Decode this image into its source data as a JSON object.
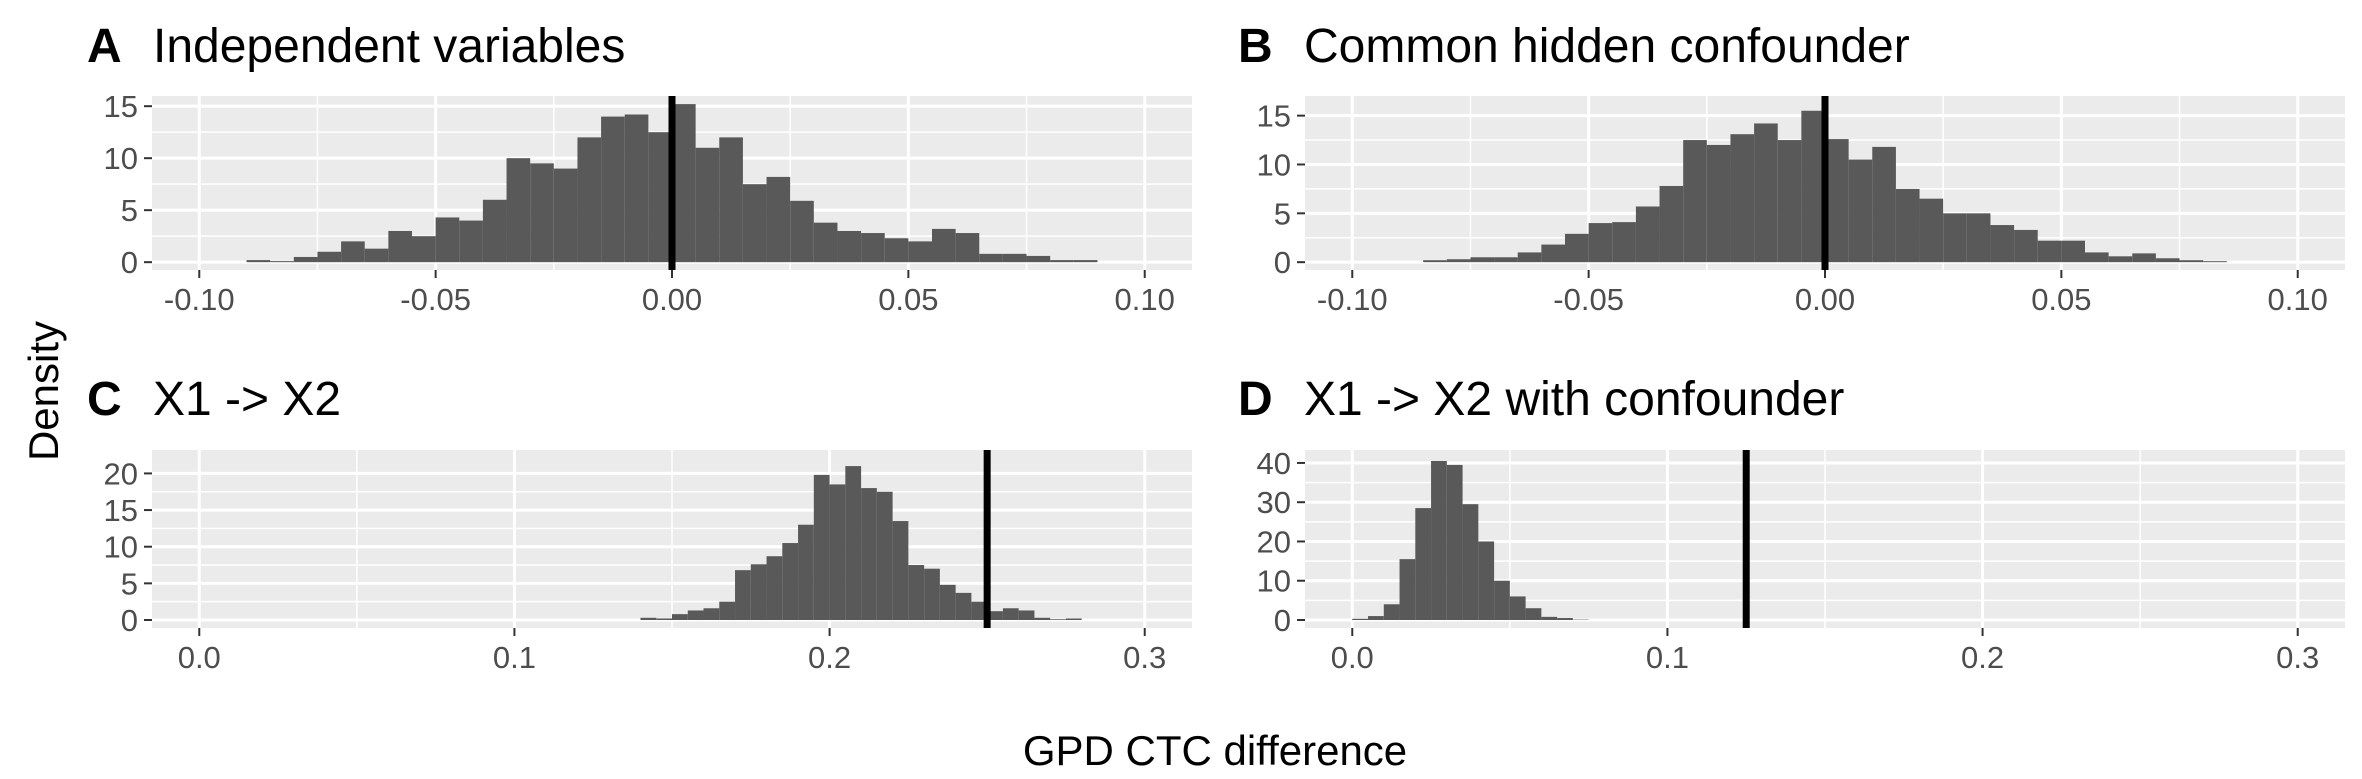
{
  "figure": {
    "ylabel": "Density",
    "xlabel": "GPD CTC difference"
  },
  "chart_data": [
    {
      "type": "bar",
      "panel": "A",
      "title": "Independent variables",
      "xlim": [
        -0.1,
        0.1
      ],
      "ylim": [
        0,
        15.5
      ],
      "xticks": [
        -0.1,
        -0.05,
        0.0,
        0.05,
        0.1
      ],
      "xtick_labels": [
        "-0.10",
        "-0.05",
        "0.00",
        "0.05",
        "0.10"
      ],
      "yticks": [
        0,
        5,
        10,
        15
      ],
      "ytick_labels": [
        "0",
        "5",
        "10",
        "15"
      ],
      "vline": 0.0,
      "bin_width": 0.005,
      "bin_centers": [
        -0.0875,
        -0.0825,
        -0.0775,
        -0.0725,
        -0.0675,
        -0.0625,
        -0.0575,
        -0.0525,
        -0.0475,
        -0.0425,
        -0.0375,
        -0.0325,
        -0.0275,
        -0.0225,
        -0.0175,
        -0.0125,
        -0.0075,
        -0.0025,
        0.0025,
        0.0075,
        0.0125,
        0.0175,
        0.0225,
        0.0275,
        0.0325,
        0.0375,
        0.0425,
        0.0475,
        0.0525,
        0.0575,
        0.0625,
        0.0675,
        0.0725,
        0.0775,
        0.0825,
        0.0875
      ],
      "densities": [
        0.2,
        0.1,
        0.5,
        1.0,
        2.0,
        1.3,
        3.0,
        2.5,
        4.3,
        4.0,
        6.0,
        10.0,
        9.5,
        9.0,
        12.0,
        14.0,
        14.2,
        12.5,
        15.2,
        11.0,
        12.0,
        7.5,
        8.2,
        5.9,
        3.8,
        3.0,
        2.8,
        2.3,
        2.0,
        3.2,
        2.8,
        0.8,
        0.8,
        0.6,
        0.2,
        0.2
      ]
    },
    {
      "type": "bar",
      "panel": "B",
      "title": "Common hidden confounder",
      "xlim": [
        -0.1,
        0.1
      ],
      "ylim": [
        0,
        16.5
      ],
      "xticks": [
        -0.1,
        -0.05,
        0.0,
        0.05,
        0.1
      ],
      "xtick_labels": [
        "-0.10",
        "-0.05",
        "0.00",
        "0.05",
        "0.10"
      ],
      "yticks": [
        0,
        5,
        10,
        15
      ],
      "ytick_labels": [
        "0",
        "5",
        "10",
        "15"
      ],
      "vline": 0.0,
      "bin_width": 0.005,
      "bin_centers": [
        -0.0825,
        -0.0775,
        -0.0725,
        -0.0675,
        -0.0625,
        -0.0575,
        -0.0525,
        -0.0475,
        -0.0425,
        -0.0375,
        -0.0325,
        -0.0275,
        -0.0225,
        -0.0175,
        -0.0125,
        -0.0075,
        -0.0025,
        0.0025,
        0.0075,
        0.0125,
        0.0175,
        0.0225,
        0.0275,
        0.0325,
        0.0375,
        0.0425,
        0.0475,
        0.0525,
        0.0575,
        0.0625,
        0.0675,
        0.0725,
        0.0775,
        0.0825
      ],
      "densities": [
        0.2,
        0.3,
        0.5,
        0.5,
        1.0,
        1.8,
        2.9,
        4.0,
        4.1,
        5.7,
        7.8,
        12.5,
        12.0,
        13.1,
        14.2,
        12.5,
        15.5,
        12.6,
        10.5,
        11.8,
        7.5,
        6.5,
        5.0,
        5.0,
        3.8,
        3.3,
        2.2,
        2.2,
        1.0,
        0.6,
        0.9,
        0.4,
        0.2,
        0.1
      ]
    },
    {
      "type": "bar",
      "panel": "C",
      "title": "X1 -> X2",
      "xlim": [
        0,
        0.3
      ],
      "ylim": [
        0,
        22.5
      ],
      "xticks": [
        0.0,
        0.1,
        0.2,
        0.3
      ],
      "xtick_labels": [
        "0.0",
        "0.1",
        "0.2",
        "0.3"
      ],
      "yticks": [
        0,
        5,
        10,
        15,
        20
      ],
      "ytick_labels": [
        "0",
        "5",
        "10",
        "15",
        "20"
      ],
      "vline": 0.25,
      "bin_width": 0.005,
      "bin_centers": [
        0.1425,
        0.1475,
        0.1525,
        0.1575,
        0.1625,
        0.1675,
        0.1725,
        0.1775,
        0.1825,
        0.1875,
        0.1925,
        0.1975,
        0.2025,
        0.2075,
        0.2125,
        0.2175,
        0.2225,
        0.2275,
        0.2325,
        0.2375,
        0.2425,
        0.2475,
        0.2525,
        0.2575,
        0.2625,
        0.2675,
        0.2725,
        0.2775
      ],
      "densities": [
        0.3,
        0.2,
        0.8,
        1.3,
        1.6,
        2.5,
        6.8,
        7.6,
        8.7,
        10.5,
        13.0,
        19.8,
        18.5,
        21.0,
        18.0,
        17.5,
        13.5,
        7.5,
        7.0,
        4.8,
        3.7,
        2.5,
        1.2,
        1.6,
        1.3,
        0.3,
        0.1,
        0.2
      ]
    },
    {
      "type": "bar",
      "panel": "D",
      "title": "X1 -> X2 with confounder",
      "xlim": [
        0,
        0.3
      ],
      "ylim": [
        0,
        42
      ],
      "xticks": [
        0.0,
        0.1,
        0.2,
        0.3
      ],
      "xtick_labels": [
        "0.0",
        "0.1",
        "0.2",
        "0.3"
      ],
      "yticks": [
        0,
        10,
        20,
        30,
        40
      ],
      "ytick_labels": [
        "0",
        "10",
        "20",
        "30",
        "40"
      ],
      "vline": 0.125,
      "bin_width": 0.005,
      "bin_centers": [
        0.0025,
        0.0075,
        0.0125,
        0.0175,
        0.0225,
        0.0275,
        0.0325,
        0.0375,
        0.0425,
        0.0475,
        0.0525,
        0.0575,
        0.0625,
        0.0675,
        0.0725
      ],
      "densities": [
        0.3,
        1.0,
        4.0,
        15.5,
        28.5,
        40.5,
        39.5,
        29.5,
        20.0,
        10.0,
        6.0,
        3.0,
        0.8,
        0.5,
        0.1
      ]
    }
  ]
}
